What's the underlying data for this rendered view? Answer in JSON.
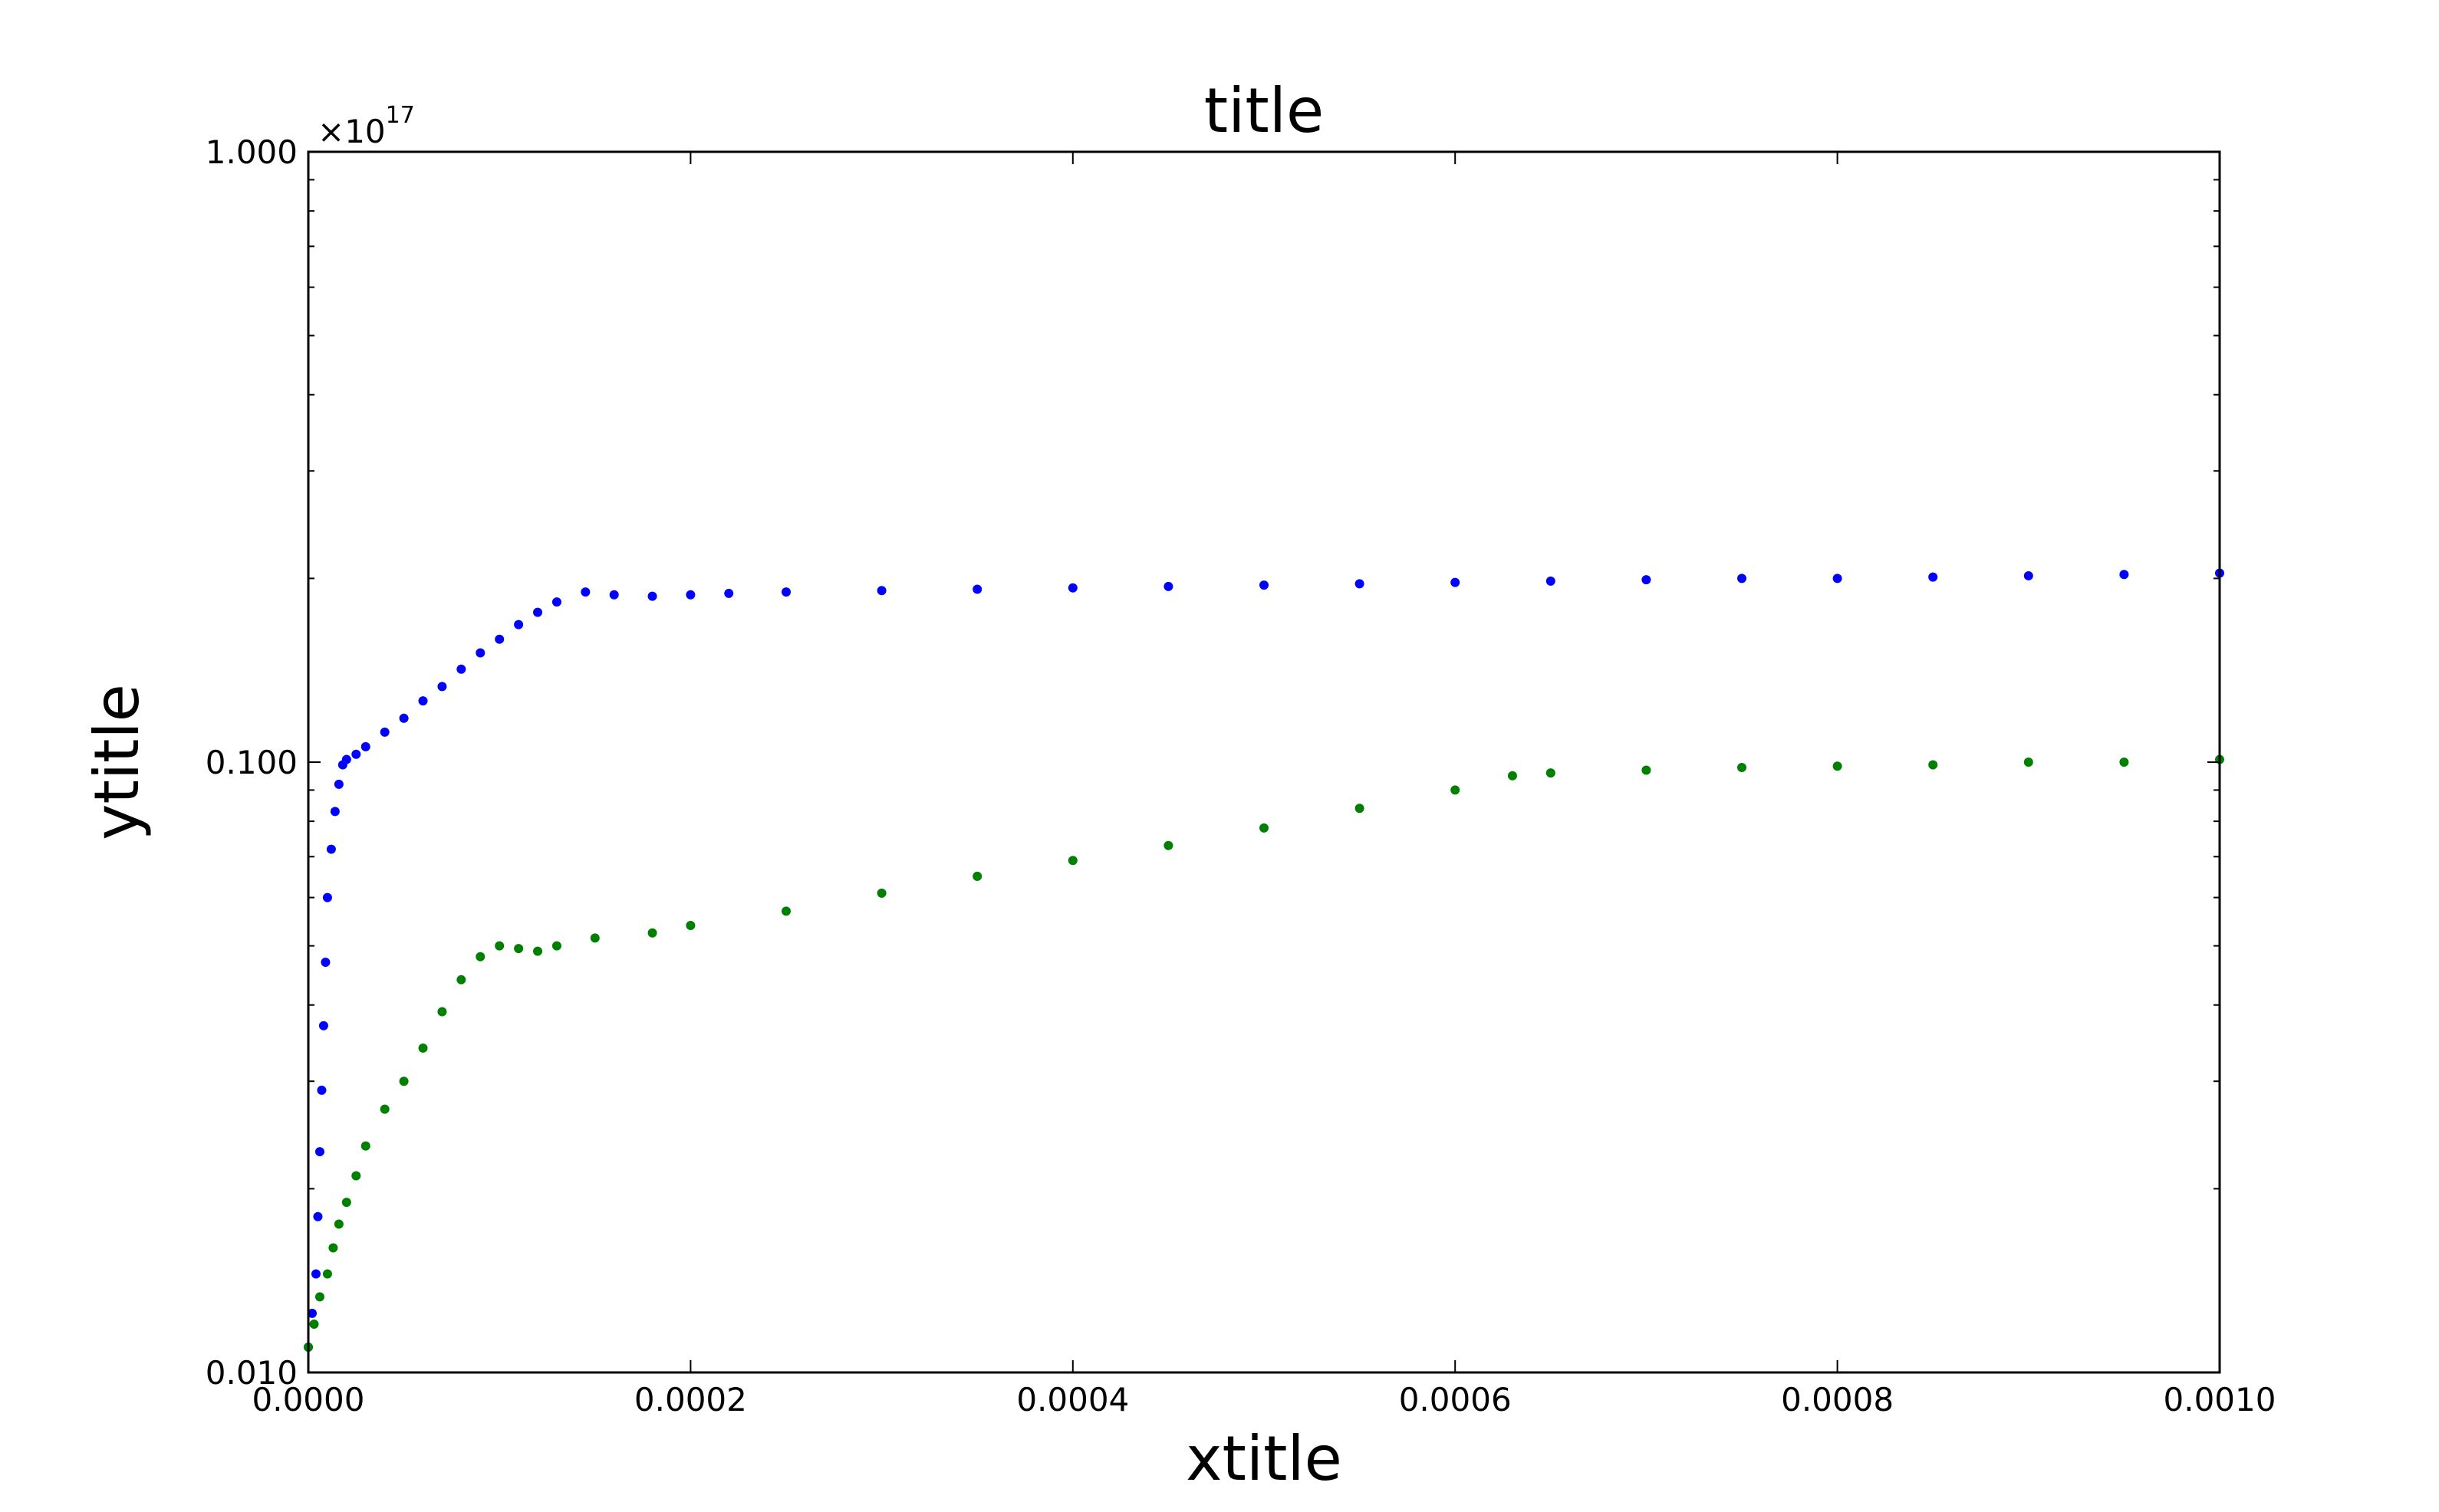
{
  "chart_data": {
    "type": "scatter",
    "title": "title",
    "xlabel": "xtitle",
    "ylabel": "ytitle",
    "y_offset_label": "×10",
    "y_offset_exponent": "17",
    "xlim": [
      0.0,
      0.001
    ],
    "ylim": [
      0.01,
      1.0
    ],
    "yscale": "log",
    "grid": false,
    "x_tick_values": [
      0.0,
      0.0002,
      0.0004,
      0.0006,
      0.0008,
      0.001
    ],
    "x_tick_labels": [
      "0.0000",
      "0.0002",
      "0.0004",
      "0.0006",
      "0.0008",
      "0.0010"
    ],
    "y_tick_values": [
      0.01,
      0.1,
      1.0
    ],
    "y_tick_labels": [
      "0.010",
      "0.100",
      "1.000"
    ],
    "series": [
      {
        "color": "#0000ff",
        "points": [
          [
            0.0,
            0.011
          ],
          [
            2e-06,
            0.0125
          ],
          [
            4e-06,
            0.0145
          ],
          [
            5e-06,
            0.018
          ],
          [
            6e-06,
            0.023
          ],
          [
            7e-06,
            0.029
          ],
          [
            8e-06,
            0.037
          ],
          [
            9e-06,
            0.047
          ],
          [
            1e-05,
            0.06
          ],
          [
            1.2e-05,
            0.072
          ],
          [
            1.4e-05,
            0.083
          ],
          [
            1.6e-05,
            0.092
          ],
          [
            1.8e-05,
            0.099
          ],
          [
            2e-05,
            0.101
          ],
          [
            2.5e-05,
            0.103
          ],
          [
            3e-05,
            0.106
          ],
          [
            4e-05,
            0.112
          ],
          [
            5e-05,
            0.118
          ],
          [
            6e-05,
            0.126
          ],
          [
            7e-05,
            0.133
          ],
          [
            8e-05,
            0.142
          ],
          [
            9e-05,
            0.151
          ],
          [
            0.0001,
            0.159
          ],
          [
            0.00011,
            0.168
          ],
          [
            0.00012,
            0.176
          ],
          [
            0.00013,
            0.183
          ],
          [
            0.000145,
            0.19
          ],
          [
            0.00016,
            0.188
          ],
          [
            0.00018,
            0.187
          ],
          [
            0.0002,
            0.188
          ],
          [
            0.00022,
            0.189
          ],
          [
            0.00025,
            0.19
          ],
          [
            0.0003,
            0.191
          ],
          [
            0.00035,
            0.192
          ],
          [
            0.0004,
            0.193
          ],
          [
            0.00045,
            0.194
          ],
          [
            0.0005,
            0.195
          ],
          [
            0.00055,
            0.196
          ],
          [
            0.0006,
            0.197
          ],
          [
            0.00065,
            0.198
          ],
          [
            0.0007,
            0.199
          ],
          [
            0.00075,
            0.2
          ],
          [
            0.0008,
            0.2
          ],
          [
            0.00085,
            0.201
          ],
          [
            0.0009,
            0.202
          ],
          [
            0.00095,
            0.203
          ],
          [
            0.001,
            0.204
          ]
        ]
      },
      {
        "color": "#008000",
        "points": [
          [
            0.0,
            0.011
          ],
          [
            3e-06,
            0.012
          ],
          [
            6e-06,
            0.0133
          ],
          [
            1e-05,
            0.0145
          ],
          [
            1.3e-05,
            0.016
          ],
          [
            1.6e-05,
            0.0175
          ],
          [
            2e-05,
            0.019
          ],
          [
            2.5e-05,
            0.021
          ],
          [
            3e-05,
            0.0235
          ],
          [
            4e-05,
            0.027
          ],
          [
            5e-05,
            0.03
          ],
          [
            6e-05,
            0.034
          ],
          [
            7e-05,
            0.039
          ],
          [
            8e-05,
            0.044
          ],
          [
            9e-05,
            0.048
          ],
          [
            0.0001,
            0.05
          ],
          [
            0.00011,
            0.0495
          ],
          [
            0.00012,
            0.049
          ],
          [
            0.00013,
            0.05
          ],
          [
            0.00015,
            0.0515
          ],
          [
            0.00018,
            0.0525
          ],
          [
            0.0002,
            0.054
          ],
          [
            0.00025,
            0.057
          ],
          [
            0.0003,
            0.061
          ],
          [
            0.00035,
            0.065
          ],
          [
            0.0004,
            0.069
          ],
          [
            0.00045,
            0.073
          ],
          [
            0.0005,
            0.078
          ],
          [
            0.00055,
            0.084
          ],
          [
            0.0006,
            0.09
          ],
          [
            0.00063,
            0.095
          ],
          [
            0.00065,
            0.096
          ],
          [
            0.0007,
            0.097
          ],
          [
            0.00075,
            0.098
          ],
          [
            0.0008,
            0.0985
          ],
          [
            0.00085,
            0.099
          ],
          [
            0.0009,
            0.1
          ],
          [
            0.00095,
            0.1
          ],
          [
            0.001,
            0.101
          ]
        ]
      }
    ]
  }
}
